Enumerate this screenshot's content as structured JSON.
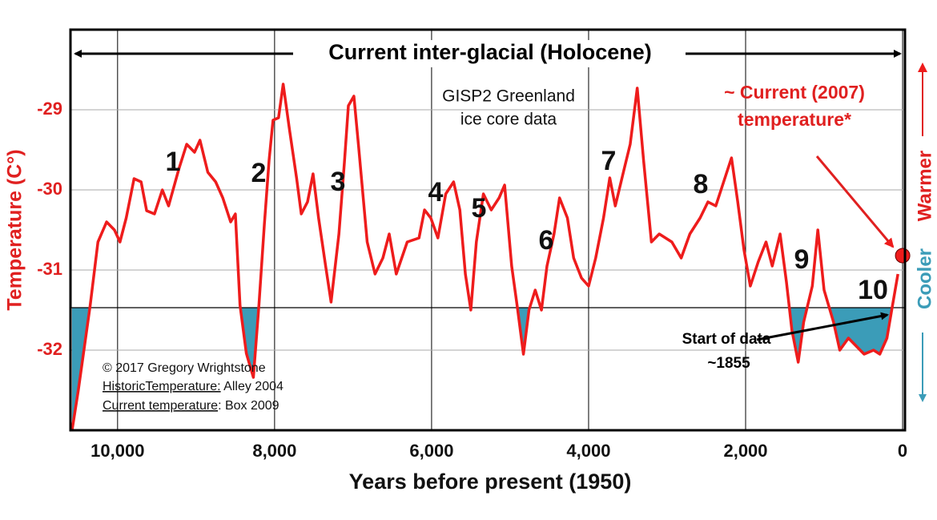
{
  "chart_data": {
    "type": "line",
    "banner": "Current inter-glacial (Holocene)",
    "subtitle_lines": [
      "GISP2 Greenland",
      "ice core data"
    ],
    "current_label_lines": [
      "~ Current (2007)",
      "temperature*"
    ],
    "start_label_lines": [
      "Start of data",
      "~1855"
    ],
    "credits": {
      "copyright": "© 2017 Gregory Wrightstone",
      "historic": {
        "label": "HistoricTemperature:",
        "source": " Alley 2004"
      },
      "current": {
        "label": "Current temperature",
        "source": ": Box 2009"
      }
    },
    "warmer": "Warmer",
    "cooler": "Cooler",
    "x_label": "Years before present (1950)",
    "y_label": "Temperature (C°)",
    "xlim": [
      10600,
      -30
    ],
    "ylim": [
      -33,
      -28
    ],
    "xticks": [
      {
        "value": 10000,
        "label": "10,000"
      },
      {
        "value": 8000,
        "label": "8,000"
      },
      {
        "value": 6000,
        "label": "6,000"
      },
      {
        "value": 4000,
        "label": "4,000"
      },
      {
        "value": 2000,
        "label": "2,000"
      },
      0
    ],
    "yticks": [
      -29,
      -30,
      -31,
      -32
    ],
    "grid": true,
    "threshold": -31.47,
    "threshold_color": "#3b9cb8",
    "peak_labels": [
      "1",
      "2",
      "3",
      "4",
      "5",
      "6",
      "7",
      "8",
      "9",
      "10"
    ],
    "current_point": {
      "x": 0,
      "y": -30.82,
      "color": "#ee1c1c"
    },
    "series": [
      {
        "color": "#ee1c1c",
        "x": [
          10580,
          10500,
          10350,
          10250,
          10140,
          10040,
          9970,
          9890,
          9790,
          9700,
          9630,
          9530,
          9430,
          9350,
          9220,
          9120,
          9020,
          8950,
          8850,
          8750,
          8660,
          8560,
          8500,
          8440,
          8360,
          8270,
          8200,
          8130,
          8070,
          8020,
          7950,
          7890,
          7810,
          7720,
          7660,
          7580,
          7510,
          7440,
          7350,
          7280,
          7180,
          7110,
          7060,
          6990,
          6930,
          6820,
          6720,
          6620,
          6540,
          6450,
          6310,
          6160,
          6090,
          6010,
          5920,
          5820,
          5720,
          5640,
          5570,
          5500,
          5430,
          5340,
          5240,
          5140,
          5070,
          4980,
          4910,
          4830,
          4760,
          4680,
          4600,
          4530,
          4440,
          4370,
          4270,
          4190,
          4090,
          4000,
          3910,
          3810,
          3730,
          3660,
          3550,
          3470,
          3380,
          3300,
          3200,
          3100,
          2940,
          2820,
          2710,
          2580,
          2480,
          2380,
          2280,
          2180,
          2100,
          2020,
          1940,
          1840,
          1740,
          1660,
          1560,
          1480,
          1410,
          1330,
          1260,
          1150,
          1080,
          1000,
          880,
          800,
          690,
          590,
          490,
          370,
          290,
          200,
          130,
          60
        ],
        "values": [
          -33.0,
          -32.5,
          -31.45,
          -30.65,
          -30.4,
          -30.5,
          -30.65,
          -30.35,
          -29.86,
          -29.9,
          -30.26,
          -30.3,
          -30.0,
          -30.2,
          -29.74,
          -29.43,
          -29.53,
          -29.38,
          -29.78,
          -29.9,
          -30.1,
          -30.4,
          -30.3,
          -31.44,
          -32.04,
          -32.34,
          -31.44,
          -30.43,
          -29.63,
          -29.13,
          -29.1,
          -28.68,
          -29.25,
          -29.85,
          -30.3,
          -30.15,
          -29.8,
          -30.35,
          -30.95,
          -31.4,
          -30.55,
          -29.65,
          -28.95,
          -28.83,
          -29.45,
          -30.65,
          -31.05,
          -30.85,
          -30.55,
          -31.05,
          -30.65,
          -30.6,
          -30.25,
          -30.35,
          -30.6,
          -30.05,
          -29.9,
          -30.25,
          -31.05,
          -31.5,
          -30.65,
          -30.05,
          -30.25,
          -30.1,
          -29.94,
          -30.95,
          -31.45,
          -32.05,
          -31.5,
          -31.25,
          -31.5,
          -30.95,
          -30.55,
          -30.1,
          -30.35,
          -30.85,
          -31.1,
          -31.2,
          -30.85,
          -30.35,
          -29.85,
          -30.2,
          -29.75,
          -29.43,
          -28.73,
          -29.63,
          -30.65,
          -30.55,
          -30.65,
          -30.85,
          -30.55,
          -30.35,
          -30.15,
          -30.2,
          -29.9,
          -29.6,
          -30.15,
          -30.75,
          -31.2,
          -30.9,
          -30.65,
          -30.95,
          -30.55,
          -31.15,
          -31.75,
          -32.15,
          -31.65,
          -31.2,
          -30.5,
          -31.25,
          -31.65,
          -32.0,
          -31.85,
          -31.95,
          -32.05,
          -32.0,
          -32.05,
          -31.85,
          -31.45,
          -31.05
        ]
      }
    ]
  }
}
